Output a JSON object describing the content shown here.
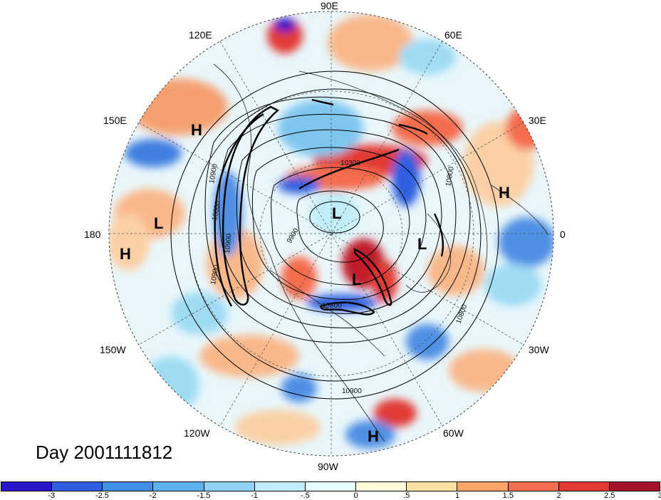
{
  "title": "Day 2001111812",
  "longitude_labels": {
    "e90": "90E",
    "e60": "60E",
    "e30": "30E",
    "zero": "0",
    "w30": "30W",
    "w60": "60W",
    "w90": "90W",
    "w120": "120W",
    "w150": "150W",
    "d180": "180",
    "e150": "150E",
    "e120": "120E"
  },
  "pressure_systems": [
    {
      "id": "h1",
      "text": "H"
    },
    {
      "id": "h2",
      "text": "H"
    },
    {
      "id": "h3",
      "text": "H"
    },
    {
      "id": "h4",
      "text": "H"
    },
    {
      "id": "l1",
      "text": "L"
    },
    {
      "id": "l2",
      "text": "L"
    },
    {
      "id": "l3",
      "text": "L"
    },
    {
      "id": "l4",
      "text": "L"
    }
  ],
  "contour_labels": [
    "10300",
    "10800",
    "10900",
    "10800",
    "10800",
    "10900",
    "10900",
    "9900",
    "10800",
    "10900"
  ],
  "colorbar": {
    "ticks": [
      "-3",
      "-2.5",
      "-2",
      "-1.5",
      "-1",
      "-.5",
      "0",
      ".5",
      "1",
      "1.5",
      "2",
      "2.5",
      "3"
    ],
    "colors": [
      "#2a17c9",
      "#2f5fe0",
      "#3f8ee8",
      "#5fb0ee",
      "#8fd3f4",
      "#bfeefa",
      "#e8fbff",
      "#fffadc",
      "#fde1a0",
      "#fba56b",
      "#f46d4e",
      "#e23b36",
      "#a8112a"
    ]
  }
}
